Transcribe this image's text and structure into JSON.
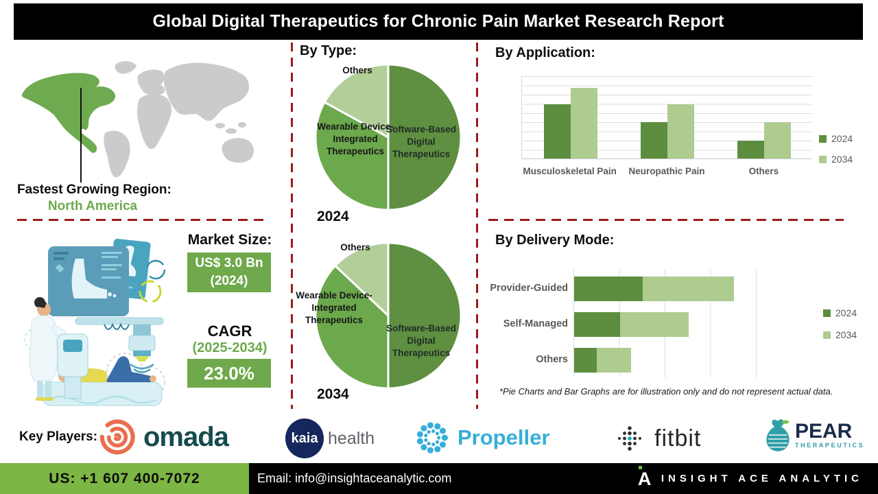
{
  "title": "Global Digital Therapeutics for Chronic Pain Market Research Report",
  "region": {
    "heading": "Fastest Growing Region:",
    "value": "North America"
  },
  "market_size": {
    "heading": "Market Size:",
    "line1": "US$ 3.0 Bn",
    "line2": "(2024)"
  },
  "cagr": {
    "heading": "CAGR",
    "period": "(2025-2034)",
    "value": "23.0%"
  },
  "chart_data": [
    {
      "type": "pie",
      "title": "By Type:",
      "pies": [
        {
          "year": "2024",
          "slices": [
            {
              "label": "Software-Based Digital Therapeutics",
              "value": 50,
              "color": "#5f8f41"
            },
            {
              "label": "Wearable Device-Integrated Therapeutics",
              "value": 33,
              "color": "#6ca84c"
            },
            {
              "label": "Others",
              "value": 17,
              "color": "#b2cf99"
            }
          ]
        },
        {
          "year": "2034",
          "slices": [
            {
              "label": "Software-Based Digital Therapeutics",
              "value": 50,
              "color": "#5f8f41"
            },
            {
              "label": "Wearable Device-Integrated Therapeutics",
              "value": 37,
              "color": "#6ca84c"
            },
            {
              "label": "Others",
              "value": 13,
              "color": "#b2cf99"
            }
          ]
        }
      ]
    },
    {
      "type": "bar",
      "title": "By Application:",
      "categories": [
        "Musculoskeletal Pain",
        "Neuropathic Pain",
        "Others"
      ],
      "series": [
        {
          "name": "2024",
          "values": [
            6,
            4,
            2
          ],
          "color": "#5d8e40"
        },
        {
          "name": "2034",
          "values": [
            7.8,
            6,
            4
          ],
          "color": "#aecb90"
        }
      ],
      "ylim": [
        0,
        9
      ],
      "grid": true,
      "legend_position": "right"
    },
    {
      "type": "stacked-bar-horizontal",
      "title": "By Delivery Mode:",
      "categories": [
        "Provider-Guided",
        "Self-Managed",
        "Others"
      ],
      "series": [
        {
          "name": "2024",
          "values": [
            1.5,
            1.0,
            0.5
          ],
          "color": "#5d8e40"
        },
        {
          "name": "2034",
          "values": [
            2.0,
            1.5,
            0.75
          ],
          "color": "#aecb90"
        }
      ],
      "xlim": [
        0,
        4
      ],
      "grid": true,
      "legend_position": "right"
    }
  ],
  "footnote": "*Pie Charts and Bar Graphs are for illustration only and do not represent actual data.",
  "key_players": {
    "heading": "Key Players:",
    "companies": [
      {
        "name": "omada"
      },
      {
        "name": "kaia health",
        "part1": "kaia",
        "part2": "health"
      },
      {
        "name": "Propeller"
      },
      {
        "name": "fitbit"
      },
      {
        "name": "PEAR",
        "sub": "THERAPEUTICS"
      }
    ]
  },
  "footer": {
    "phone": "US: +1 607 400-7072",
    "email": "Email: info@insightaceanalytic.com",
    "brand": "INSIGHT ACE ANALYTIC"
  },
  "colors": {
    "accent_dark_green": "#5d8e40",
    "accent_mid_green": "#6ca84c",
    "accent_light_green": "#aecb90",
    "footer_green": "#7cb644",
    "box_green": "#6fa94b",
    "divider_red": "#9c1a1a",
    "title_bg": "#000000"
  }
}
